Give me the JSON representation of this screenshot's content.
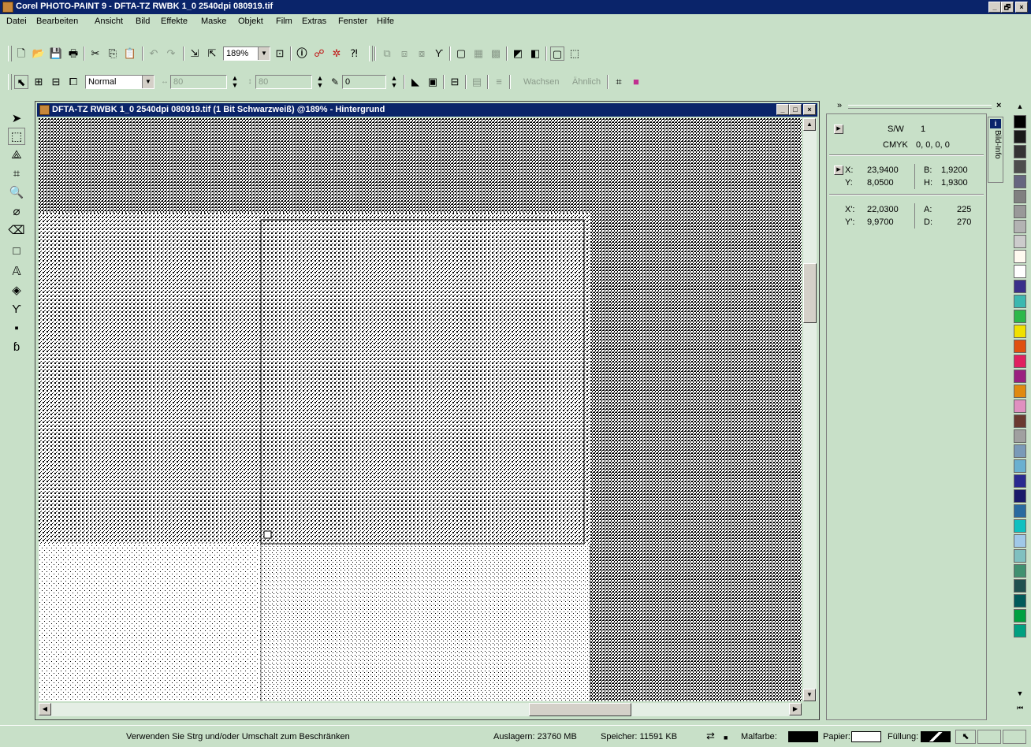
{
  "app": {
    "title": "Corel PHOTO-PAINT 9 - DFTA-TZ RWBK 1_0 2540dpi 080919.tif",
    "icon": "corel-photopaint-icon",
    "window_buttons": [
      "_",
      "🗗",
      "×"
    ]
  },
  "menu": [
    "Datei",
    "Bearbeiten",
    "Ansicht",
    "Bild",
    "Effekte",
    "Maske",
    "Objekt",
    "Film",
    "Extras",
    "Fenster",
    "Hilfe"
  ],
  "toolbar": {
    "zoom_value": "189%",
    "merge_mode": "Normal",
    "width_value": "80",
    "height_value": "80",
    "feather_value": "0",
    "grow_label": "Wachsen",
    "similar_label": "Ähnlich"
  },
  "document": {
    "title": "DFTA-TZ RWBK 1_0 2540dpi 080919.tif (1 Bit Schwarzweiß) @189% - Hintergrund",
    "window_buttons": [
      "_",
      "□",
      "×"
    ]
  },
  "info_docker": {
    "tab_label": "Bild-Info",
    "mode_label": "S/W",
    "mode_value": "1",
    "cmyk_label": "CMYK",
    "cmyk_value": "0, 0, 0, 0",
    "x_label": "X:",
    "x_value": "23,9400",
    "y_label": "Y:",
    "y_value": "8,0500",
    "b_label": "B:",
    "b_value": "1,9200",
    "h_label": "H:",
    "h_value": "1,9300",
    "x2_label": "X':",
    "x2_value": "22,0300",
    "y2_label": "Y':",
    "y2_value": "9,9700",
    "a_label": "A:",
    "a_value": "225",
    "d_label": "D:",
    "d_value": "270"
  },
  "palette_colors": [
    "#000000",
    "#1a1a1a",
    "#333333",
    "#4d4d4d",
    "#666680",
    "#808080",
    "#999999",
    "#b3b3b3",
    "#cccccc",
    "#fffaf0",
    "#ffffff",
    "#3a2f8a",
    "#3cb8b0",
    "#2db84a",
    "#f0e000",
    "#e05010",
    "#e02060",
    "#9a2080",
    "#e08a10",
    "#e090c0",
    "#6a3a30",
    "#a0a0a0",
    "#7a9ab8",
    "#6ab0d0",
    "#2a2a90",
    "#1a1a6a",
    "#2a6aa0",
    "#10c0c0",
    "#a0c8e8",
    "#80c0c0",
    "#409070",
    "#205050",
    "#005a5a",
    "#00a040",
    "#00a080"
  ],
  "status": {
    "hint": "Verwenden Sie Strg und/oder Umschalt zum Beschränken",
    "swap": "Auslagern: 23760 MB",
    "memory": "Speicher: 11591 KB",
    "paint_label": "Malfarbe:",
    "paper_label": "Papier:",
    "fill_label": "Füllung:",
    "paint_color": "#000000",
    "paper_color": "#ffffff"
  }
}
